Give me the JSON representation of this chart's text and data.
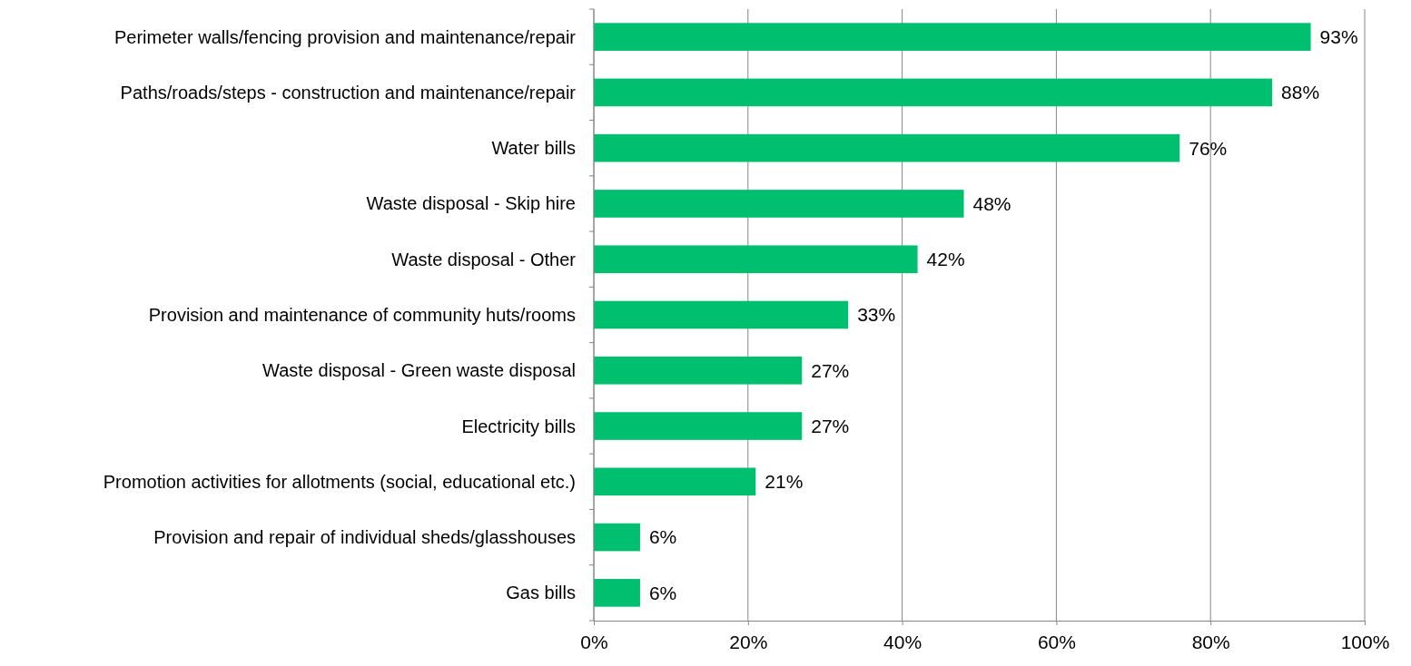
{
  "chart_data": {
    "type": "bar",
    "orientation": "horizontal",
    "categories": [
      "Perimeter walls/fencing provision and maintenance/repair",
      "Paths/roads/steps - construction and maintenance/repair",
      "Water bills",
      "Waste disposal - Skip hire",
      "Waste disposal - Other",
      "Provision and maintenance of community huts/rooms",
      "Waste disposal - Green waste disposal",
      "Electricity bills",
      "Promotion activities for allotments (social, educational etc.)",
      "Provision and repair of individual sheds/glasshouses",
      "Gas bills"
    ],
    "values": [
      93,
      88,
      76,
      48,
      42,
      33,
      27,
      27,
      21,
      6,
      6
    ],
    "value_labels": [
      "93%",
      "88%",
      "76%",
      "48%",
      "42%",
      "33%",
      "27%",
      "27%",
      "21%",
      "6%",
      "6%"
    ],
    "color": "#00c070",
    "xlim": [
      0,
      100
    ],
    "xticks": [
      {
        "value": 0,
        "label": "0%"
      },
      {
        "value": 20,
        "label": "20%"
      },
      {
        "value": 40,
        "label": "40%"
      },
      {
        "value": 60,
        "label": "60%"
      },
      {
        "value": 80,
        "label": "80%"
      },
      {
        "value": 100,
        "label": "100%"
      }
    ],
    "grid": "x"
  }
}
